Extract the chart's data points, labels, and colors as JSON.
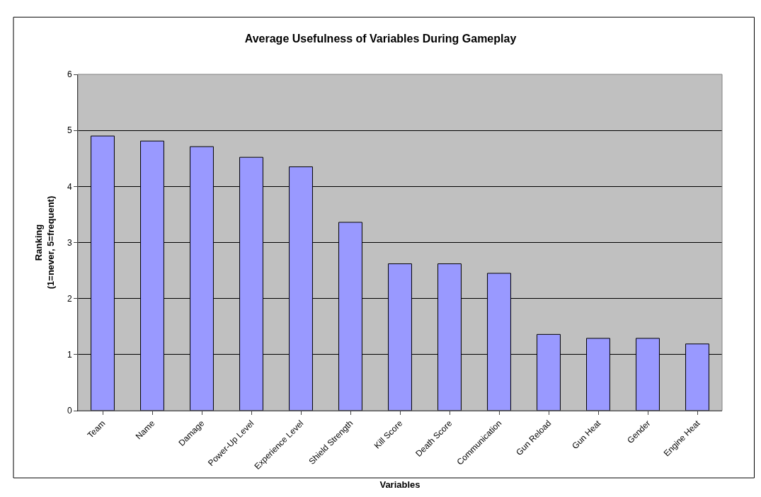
{
  "chart_data": {
    "type": "bar",
    "title": "Average Usefulness of Variables During Gameplay",
    "xlabel": "Variables",
    "ylabel": "Ranking\n(1=never, 5=frequent)",
    "categories": [
      "Team",
      "Name",
      "Damage",
      "Power-Up Level",
      "Experience Level",
      "Shield Strength",
      "Kill Score",
      "Death Score",
      "Communication",
      "Gun Reload",
      "Gun Heat",
      "Gender",
      "Engine Heat"
    ],
    "values": [
      4.9,
      4.81,
      4.71,
      4.52,
      4.35,
      3.36,
      2.62,
      2.62,
      2.45,
      1.36,
      1.29,
      1.29,
      1.19
    ],
    "color": "#9999ff",
    "ylim": [
      0,
      6
    ],
    "yticks": [
      0,
      1,
      2,
      3,
      4,
      5,
      6
    ],
    "grid": "y",
    "legend": false
  }
}
